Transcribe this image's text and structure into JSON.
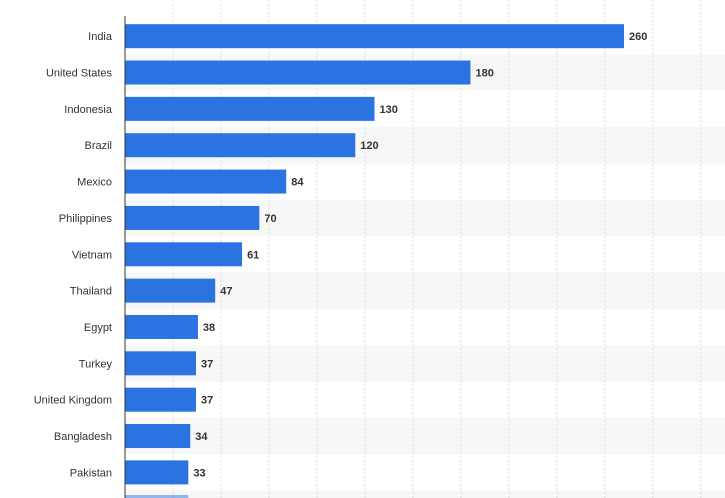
{
  "chart_data": {
    "type": "bar",
    "orientation": "horizontal",
    "categories": [
      "India",
      "United States",
      "Indonesia",
      "Brazil",
      "Mexico",
      "Philippines",
      "Vietnam",
      "Thailand",
      "Egypt",
      "Turkey",
      "United Kingdom",
      "Bangladesh",
      "Pakistan"
    ],
    "values": [
      260,
      180,
      130,
      120,
      84,
      70,
      61,
      47,
      38,
      37,
      37,
      34,
      33
    ],
    "title": "",
    "xlabel": "",
    "ylabel": "",
    "xlim": [
      0,
      300
    ],
    "grid": "vertical dashed",
    "alternating_row_bands": true,
    "bar_color": "#2a73e0",
    "band_color": "#f7f7f7",
    "grid_color": "#dddddd",
    "axis_color": "#333333",
    "text_color": "#333333"
  }
}
